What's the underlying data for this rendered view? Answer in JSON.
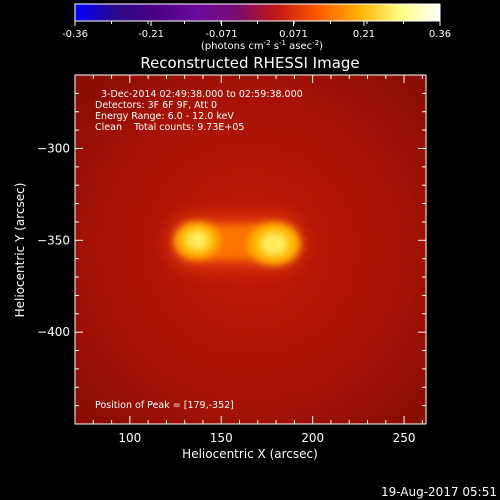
{
  "colorbar": {
    "range": [
      -0.36,
      0.36
    ],
    "ticks": [
      "-0.36",
      "-0.21",
      "-0.071",
      "0.071",
      "0.21",
      "0.36"
    ],
    "unit_parts": [
      "(photons cm",
      "-2",
      " s",
      "-1",
      " asec",
      "-2",
      ")"
    ],
    "palette": [
      "#0000ff",
      "#2a0a8a",
      "#4b0082",
      "#6a0aa0",
      "#7a0b70",
      "#c21a10",
      "#ff5a00",
      "#ffb000",
      "#ffff80",
      "#ffffff"
    ]
  },
  "image": {
    "title": "Reconstructed RHESSI Image",
    "info_lines": [
      "3-Dec-2014 02:49:38.000 to 02:59:38.000",
      "Detectors: 3F 6F 9F, Att 0",
      "Energy Range: 6.0 - 12.0 keV",
      "Clean    Total counts: 9.73E+05"
    ],
    "peak_text": "Position of Peak = [179,-352]",
    "footer_date": "19-Aug-2017 05:51"
  },
  "chart_data": {
    "type": "heatmap",
    "title": "Reconstructed RHESSI Image",
    "xlabel": "Heliocentric X (arcsec)",
    "ylabel": "Heliocentric Y (arcsec)",
    "xlim": [
      70,
      262
    ],
    "ylim": [
      -450,
      -260
    ],
    "x_ticks": [
      100,
      150,
      200,
      250
    ],
    "y_ticks": [
      -300,
      -350,
      -400
    ],
    "sources": [
      {
        "x": 137,
        "y": -350,
        "peak": 0.3
      },
      {
        "x": 179,
        "y": -352,
        "peak": 0.36
      }
    ],
    "peak_position": [
      179,
      -352
    ]
  }
}
